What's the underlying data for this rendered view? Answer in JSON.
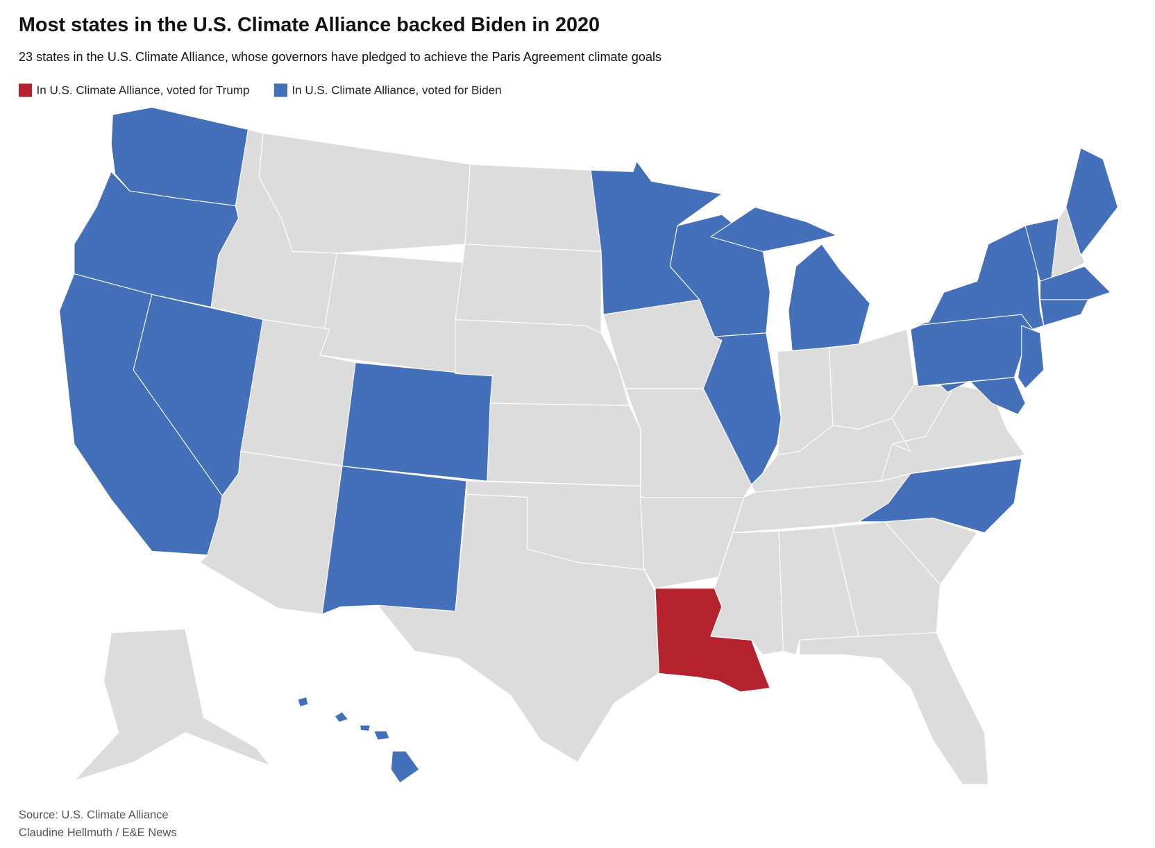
{
  "header": {
    "title": "Most states in the U.S. Climate Alliance backed Biden in 2020",
    "subtitle": "23 states in the U.S. Climate Alliance, whose governors have pledged to achieve the Paris Agreement climate goals"
  },
  "legend": [
    {
      "label": "In U.S. Climate Alliance, voted for Trump",
      "color": "#b5232e"
    },
    {
      "label": "In U.S. Climate Alliance, voted for Biden",
      "color": "#4470b9"
    }
  ],
  "map": {
    "base_color": "#dcdcdc"
  },
  "footer": {
    "source": "Source: U.S. Climate Alliance",
    "credit": "Claudine Hellmuth / E&E News"
  }
}
